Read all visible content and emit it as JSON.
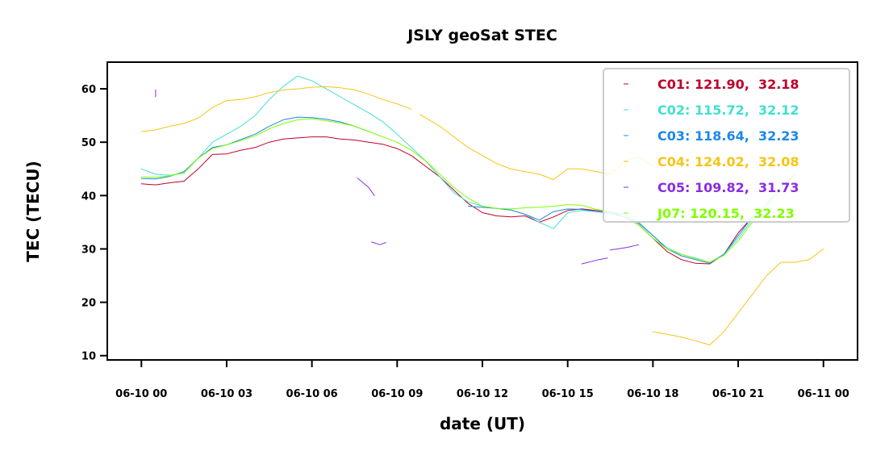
{
  "chart_data": {
    "type": "line",
    "title": "JSLY geoSat STEC",
    "xlabel": "date (UT)",
    "ylabel": "TEC (TECU)",
    "x_unit": "hours since 06-10 00:00 UT",
    "xlim": [
      -1.2,
      25.2
    ],
    "ylim": [
      9.2,
      65
    ],
    "x_ticks": [
      {
        "x": 0,
        "label": "06-10 00"
      },
      {
        "x": 3,
        "label": "06-10 03"
      },
      {
        "x": 6,
        "label": "06-10 06"
      },
      {
        "x": 9,
        "label": "06-10 09"
      },
      {
        "x": 12,
        "label": "06-10 12"
      },
      {
        "x": 15,
        "label": "06-10 15"
      },
      {
        "x": 18,
        "label": "06-10 18"
      },
      {
        "x": 21,
        "label": "06-10 21"
      },
      {
        "x": 24,
        "label": "06-11 00"
      }
    ],
    "y_ticks": [
      {
        "y": 10,
        "label": "10"
      },
      {
        "y": 20,
        "label": "20"
      },
      {
        "y": 30,
        "label": "30"
      },
      {
        "y": 40,
        "label": "40"
      },
      {
        "y": 50,
        "label": "50"
      },
      {
        "y": 60,
        "label": "60"
      }
    ],
    "legend_position": "top-right",
    "grid": false,
    "series": [
      {
        "name": "C01",
        "legend": "C01: 121.90,  32.18",
        "color": "#c0002a",
        "segments": [
          [
            [
              0,
              42.2
            ],
            [
              0.5,
              42
            ],
            [
              1,
              42.4
            ],
            [
              1.5,
              42.7
            ],
            [
              2,
              45
            ],
            [
              2.5,
              47.7
            ],
            [
              3,
              47.8
            ],
            [
              3.5,
              48.5
            ],
            [
              4,
              49
            ],
            [
              4.5,
              50
            ],
            [
              5,
              50.6
            ],
            [
              5.5,
              50.8
            ],
            [
              6,
              51
            ],
            [
              6.5,
              51
            ],
            [
              7,
              50.6
            ],
            [
              7.5,
              50.4
            ],
            [
              8,
              50
            ],
            [
              8.5,
              49.6
            ],
            [
              9,
              48.8
            ],
            [
              9.5,
              47.5
            ],
            [
              10,
              45.5
            ],
            [
              10.5,
              43.5
            ],
            [
              11,
              41
            ],
            [
              11.5,
              38.5
            ],
            [
              12,
              36.8
            ],
            [
              12.5,
              36.2
            ],
            [
              13,
              36
            ],
            [
              13.5,
              36.2
            ],
            [
              14,
              35
            ],
            [
              14.5,
              36
            ],
            [
              15,
              37.2
            ],
            [
              15.5,
              37.5
            ],
            [
              16,
              37.2
            ],
            [
              16.5,
              37
            ],
            [
              17,
              36
            ],
            [
              17.5,
              34.5
            ],
            [
              18,
              32
            ],
            [
              18.5,
              29.5
            ],
            [
              19,
              28
            ],
            [
              19.5,
              27.3
            ],
            [
              20,
              27.2
            ],
            [
              20.5,
              29
            ],
            [
              21,
              33
            ],
            [
              21.5,
              36
            ]
          ]
        ]
      },
      {
        "name": "C02",
        "legend": "C02: 115.72,  32.12",
        "color": "#40e0d0",
        "segments": [
          [
            [
              0,
              45
            ],
            [
              0.5,
              44
            ],
            [
              1,
              43.8
            ],
            [
              1.5,
              44.2
            ],
            [
              2,
              47
            ],
            [
              2.5,
              50
            ],
            [
              3,
              51.5
            ],
            [
              3.5,
              53
            ],
            [
              4,
              55
            ],
            [
              4.5,
              58
            ],
            [
              5,
              60.5
            ],
            [
              5.5,
              62.4
            ],
            [
              6,
              61.5
            ],
            [
              6.5,
              60
            ],
            [
              7,
              58.5
            ],
            [
              7.5,
              57
            ],
            [
              8,
              55.5
            ],
            [
              8.5,
              53.8
            ],
            [
              9,
              51.5
            ],
            [
              9.5,
              49
            ],
            [
              10,
              46.5
            ],
            [
              10.5,
              43.5
            ],
            [
              11,
              40.5
            ],
            [
              11.5,
              38.8
            ],
            [
              12,
              38
            ],
            [
              12.5,
              37.6
            ],
            [
              13,
              37.3
            ],
            [
              13.5,
              36.5
            ],
            [
              14,
              35
            ],
            [
              14.5,
              33.8
            ],
            [
              15,
              36.8
            ],
            [
              15.5,
              37.2
            ],
            [
              16,
              37
            ],
            [
              16.5,
              37
            ],
            [
              17,
              36.5
            ],
            [
              17.5,
              35
            ],
            [
              18,
              32.5
            ],
            [
              18.5,
              30.2
            ],
            [
              19,
              29
            ],
            [
              19.5,
              28.3
            ],
            [
              20,
              27.5
            ],
            [
              20.5,
              29
            ],
            [
              21,
              32
            ],
            [
              21.5,
              35.5
            ],
            [
              22,
              38.5
            ],
            [
              22.5,
              41.5
            ],
            [
              23,
              44
            ]
          ]
        ]
      },
      {
        "name": "C03",
        "legend": "C03: 118.64,  32.23",
        "color": "#1e88e5",
        "segments": [
          [
            [
              0,
              43.2
            ],
            [
              0.5,
              43.1
            ],
            [
              1,
              43.6
            ],
            [
              1.5,
              44.5
            ],
            [
              2,
              47
            ],
            [
              2.5,
              49
            ],
            [
              3,
              49.5
            ],
            [
              3.5,
              50.5
            ],
            [
              4,
              51.5
            ],
            [
              4.5,
              53
            ],
            [
              5,
              54.2
            ],
            [
              5.5,
              54.7
            ],
            [
              6,
              54.6
            ],
            [
              6.5,
              54.3
            ],
            [
              7,
              53.8
            ],
            [
              7.5,
              53
            ],
            [
              8,
              52
            ]
          ],
          [
            [
              11.5,
              38
            ],
            [
              12,
              37.8
            ],
            [
              12.5,
              37.6
            ],
            [
              13,
              37.3
            ],
            [
              13.5,
              36.5
            ],
            [
              14,
              35.4
            ],
            [
              14.5,
              37
            ],
            [
              15,
              37.5
            ],
            [
              15.5,
              37.4
            ],
            [
              16,
              37
            ],
            [
              16.5,
              36.7
            ],
            [
              17,
              36
            ],
            [
              17.5,
              34.8
            ],
            [
              18,
              32.5
            ],
            [
              18.5,
              30
            ],
            [
              19,
              28.7
            ],
            [
              19.5,
              28
            ],
            [
              20,
              27.3
            ],
            [
              20.5,
              29
            ],
            [
              21,
              32.5
            ],
            [
              21.5,
              36
            ]
          ]
        ]
      },
      {
        "name": "C04",
        "legend": "C04: 124.02,  32.08",
        "color": "#f5c518",
        "segments": [
          [
            [
              0,
              52
            ],
            [
              0.5,
              52.3
            ],
            [
              1,
              53
            ],
            [
              1.5,
              53.5
            ],
            [
              2,
              54.5
            ],
            [
              2.5,
              56.5
            ],
            [
              3,
              57.8
            ],
            [
              3.5,
              58
            ],
            [
              4,
              58.5
            ],
            [
              4.5,
              59.3
            ],
            [
              5,
              59.8
            ],
            [
              5.5,
              60
            ],
            [
              6,
              60.3
            ],
            [
              6.5,
              60.4
            ],
            [
              7,
              60.2
            ],
            [
              7.5,
              59.8
            ],
            [
              8,
              59
            ],
            [
              8.5,
              58
            ],
            [
              9,
              57.2
            ],
            [
              9.5,
              56.2
            ]
          ],
          [
            [
              9.8,
              55.2
            ],
            [
              10.5,
              53
            ],
            [
              11,
              51
            ],
            [
              11.5,
              49
            ],
            [
              12,
              47.5
            ],
            [
              12.5,
              46
            ],
            [
              13,
              45
            ],
            [
              13.5,
              44.5
            ],
            [
              14,
              44
            ],
            [
              14.5,
              43
            ],
            [
              15,
              45
            ],
            [
              15.5,
              45
            ],
            [
              16,
              44.5
            ],
            [
              16.5,
              44
            ],
            [
              17,
              46.5
            ],
            [
              17.5,
              47.2
            ],
            [
              18,
              45.5
            ]
          ],
          [
            [
              18,
              14.5
            ],
            [
              18.5,
              14
            ],
            [
              19,
              13.5
            ],
            [
              19.5,
              12.8
            ],
            [
              20,
              12
            ],
            [
              20.5,
              14.5
            ],
            [
              21,
              18
            ],
            [
              21.5,
              21.5
            ],
            [
              22,
              25
            ],
            [
              22.5,
              27.5
            ],
            [
              23,
              27.5
            ],
            [
              23.5,
              28
            ],
            [
              24,
              30
            ]
          ]
        ]
      },
      {
        "name": "C05",
        "legend": "C05: 109.82,  31.73",
        "color": "#8a2be2",
        "segments": [
          [
            [
              0.5,
              59.8
            ],
            [
              0.5,
              58.5
            ]
          ],
          [
            [
              7.6,
              43.3
            ],
            [
              8,
              41.5
            ],
            [
              8.2,
              40
            ]
          ],
          [
            [
              8.1,
              31.3
            ],
            [
              8.4,
              30.8
            ],
            [
              8.6,
              31.2
            ]
          ],
          [
            [
              15.5,
              27.2
            ],
            [
              15.8,
              27.6
            ],
            [
              16.1,
              28
            ],
            [
              16.4,
              28.3
            ]
          ],
          [
            [
              16.5,
              29.8
            ],
            [
              17.1,
              30.3
            ],
            [
              17.5,
              30.8
            ]
          ]
        ]
      },
      {
        "name": "J07",
        "legend": "J07: 120.15,  32.23",
        "color": "#7fff00",
        "segments": [
          [
            [
              0,
              43.5
            ],
            [
              0.5,
              43.4
            ],
            [
              1,
              43.7
            ],
            [
              1.5,
              44.3
            ],
            [
              2,
              47
            ],
            [
              2.5,
              48.8
            ],
            [
              3,
              49.5
            ],
            [
              3.5,
              50.3
            ],
            [
              4,
              51.2
            ],
            [
              4.5,
              52.5
            ],
            [
              5,
              53.5
            ],
            [
              5.5,
              54.2
            ],
            [
              6,
              54.4
            ],
            [
              6.5,
              54
            ],
            [
              7,
              53.6
            ],
            [
              7.5,
              53
            ],
            [
              8,
              52
            ],
            [
              8.5,
              51
            ],
            [
              9,
              50
            ],
            [
              9.5,
              48.5
            ],
            [
              10,
              46.5
            ],
            [
              10.5,
              44
            ],
            [
              11,
              41.5
            ],
            [
              11.5,
              39.5
            ],
            [
              12,
              38
            ],
            [
              12.5,
              37.6
            ],
            [
              13,
              37.5
            ],
            [
              13.5,
              37.7
            ],
            [
              14,
              37.8
            ],
            [
              14.5,
              38
            ],
            [
              15,
              38.3
            ],
            [
              15.5,
              38.2
            ],
            [
              16,
              37.4
            ],
            [
              16.5,
              37
            ],
            [
              17,
              36
            ],
            [
              17.5,
              34.5
            ],
            [
              18,
              32
            ],
            [
              18.5,
              30
            ],
            [
              19,
              29
            ],
            [
              19.5,
              28.2
            ],
            [
              20,
              27.5
            ],
            [
              20.5,
              28.8
            ],
            [
              21,
              31.5
            ],
            [
              21.5,
              35
            ],
            [
              22,
              38
            ],
            [
              22.5,
              41
            ],
            [
              23,
              44
            ]
          ]
        ]
      }
    ]
  }
}
